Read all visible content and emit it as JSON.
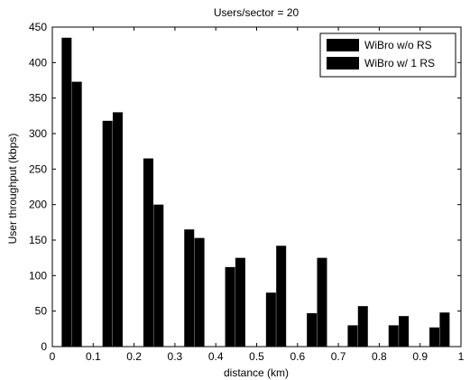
{
  "chart_data": {
    "type": "bar",
    "title": "Users/sector = 20",
    "xlabel": "distance (km)",
    "ylabel": "User throughput (kbps)",
    "xlim": [
      0,
      1
    ],
    "ylim": [
      0,
      450
    ],
    "xticks": [
      0,
      0.1,
      0.2,
      0.3,
      0.4,
      0.5,
      0.6,
      0.7,
      0.8,
      0.9,
      1
    ],
    "xtick_labels": [
      "0",
      "0.1",
      "0.2",
      "0.3",
      "0.4",
      "0.5",
      "0.6",
      "0.7",
      "0.8",
      "0.9",
      "1"
    ],
    "yticks": [
      0,
      50,
      100,
      150,
      200,
      250,
      300,
      350,
      400,
      450
    ],
    "ytick_labels": [
      "0",
      "50",
      "100",
      "150",
      "200",
      "250",
      "300",
      "350",
      "400",
      "450"
    ],
    "grid": false,
    "legend_position": "top-right",
    "bar_color": "#000000",
    "series": [
      {
        "name": "WiBro w/o RS",
        "x": [
          0.035,
          0.135,
          0.235,
          0.335,
          0.435,
          0.535,
          0.635,
          0.735,
          0.835,
          0.935
        ],
        "values": [
          435,
          318,
          265,
          165,
          112,
          76,
          47,
          30,
          30,
          27
        ]
      },
      {
        "name": "WiBro w/ 1 RS",
        "x": [
          0.06,
          0.16,
          0.26,
          0.36,
          0.46,
          0.56,
          0.66,
          0.76,
          0.86,
          0.96
        ],
        "values": [
          373,
          330,
          200,
          153,
          125,
          142,
          125,
          57,
          43,
          48
        ]
      }
    ]
  }
}
